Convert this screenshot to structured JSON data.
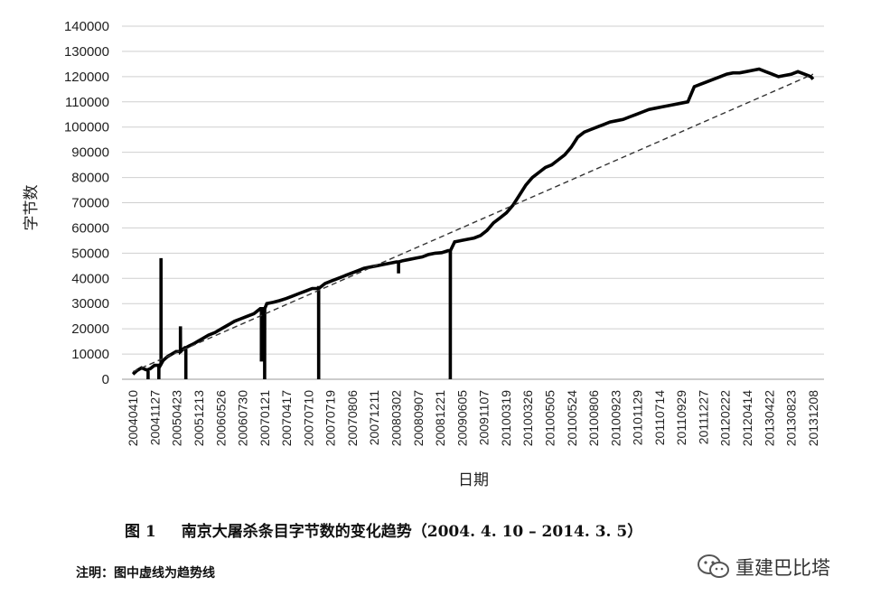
{
  "chart_data": {
    "type": "line",
    "xlabel": "日期",
    "ylabel": "字节数",
    "ylim": [
      0,
      140000
    ],
    "yticks": [
      0,
      10000,
      20000,
      30000,
      40000,
      50000,
      60000,
      70000,
      80000,
      90000,
      100000,
      110000,
      120000,
      130000,
      140000
    ],
    "xtick_labels": [
      "20040410",
      "20041127",
      "20050423",
      "20051213",
      "20060526",
      "20060730",
      "20070121",
      "20070417",
      "20070710",
      "20070719",
      "20070806",
      "20071211",
      "20080302",
      "20080907",
      "20081221",
      "20090605",
      "20091107",
      "20100319",
      "20100326",
      "20100505",
      "20100524",
      "20100806",
      "20100923",
      "20101129",
      "20110714",
      "20110929",
      "20111227",
      "20120222",
      "20120414",
      "20130422",
      "20130823",
      "20131208"
    ],
    "grid": true,
    "series": [
      {
        "style": "solid",
        "x": [
          0.0,
          0.2,
          0.4,
          0.6,
          0.8,
          1.0,
          1.2,
          1.3,
          1.4,
          1.6,
          1.8,
          2.0,
          2.2,
          2.4,
          2.6,
          2.8,
          3.0,
          3.2,
          3.5,
          3.8,
          4.1,
          4.4,
          4.7,
          5.0,
          5.3,
          5.6,
          5.9,
          6.2,
          6.5,
          6.8,
          7.1,
          7.4,
          7.7,
          8.0,
          8.3,
          8.6,
          8.9,
          9.2,
          9.5,
          9.8,
          10.1,
          10.4,
          10.7,
          11.0,
          11.3,
          11.6,
          11.9,
          12.2,
          12.5,
          12.8,
          13.1,
          13.4,
          13.7,
          14.0,
          14.3,
          14.6,
          14.9,
          15.2,
          15.5,
          15.8,
          16.1,
          16.4,
          16.7,
          17.0,
          17.3,
          17.6,
          17.9,
          18.2,
          18.5,
          18.8,
          19.1,
          19.4,
          19.7,
          20.0,
          20.3,
          20.6,
          20.9,
          21.2,
          21.5,
          21.8,
          22.1,
          22.4,
          22.7,
          23.0,
          23.3,
          23.6,
          23.9,
          24.2,
          24.5,
          24.8,
          25.1,
          25.4,
          25.7,
          26.0,
          26.3,
          26.6,
          26.9,
          27.2,
          27.5,
          27.8,
          28.1,
          28.4,
          28.7,
          29.0,
          29.3,
          29.6,
          29.9,
          30.2,
          30.5,
          30.8,
          31.1,
          31.4,
          31.5
        ],
        "y": [
          2000,
          3500,
          4500,
          3800,
          4200,
          5500,
          6000,
          48000,
          7500,
          9000,
          10000,
          11000,
          11800,
          12500,
          13200,
          14000,
          15000,
          16000,
          17500,
          18500,
          20000,
          21500,
          23000,
          24000,
          25000,
          26000,
          28000,
          30000,
          30500,
          31200,
          32000,
          33000,
          34000,
          35000,
          36000,
          37000,
          38000,
          39000,
          40000,
          41000,
          42000,
          43000,
          44000,
          44500,
          45000,
          45500,
          46000,
          46500,
          47000,
          47500,
          48000,
          48500,
          49500,
          50000,
          50200,
          51000,
          54500,
          55000,
          55500,
          56000,
          57000,
          59000,
          62000,
          64000,
          66000,
          69000,
          73000,
          77000,
          80000,
          82000,
          84000,
          85000,
          87000,
          89000,
          92000,
          96000,
          98000,
          99000,
          100000,
          101000,
          102000,
          102500,
          103000,
          104000,
          105000,
          106000,
          107000,
          107500,
          108000,
          108500,
          109000,
          109500,
          110000,
          116000,
          117000,
          118000,
          119000,
          120000,
          121000,
          121500,
          121500,
          122000,
          122500,
          123000,
          122000,
          121000,
          120000,
          120500,
          121000,
          122000,
          121000,
          120000,
          119000
        ],
        "spikes": [
          {
            "x": 0.7,
            "y": 0
          },
          {
            "x": 1.3,
            "y": 48000
          },
          {
            "x": 1.2,
            "y": 0
          },
          {
            "x": 2.2,
            "y": 21000
          },
          {
            "x": 2.45,
            "y": 0
          },
          {
            "x": 5.95,
            "y": 7000
          },
          {
            "x": 6.1,
            "y": 0
          },
          {
            "x": 8.6,
            "y": 0
          },
          {
            "x": 12.3,
            "y": 42000
          },
          {
            "x": 14.7,
            "y": 0
          }
        ]
      },
      {
        "style": "dashed",
        "x": [
          0.0,
          31.5
        ],
        "y": [
          3000,
          121000
        ]
      }
    ]
  },
  "caption": {
    "label": "图 1",
    "title": "南京大屠杀条目字节数的变化趋势（2004. 4. 10 – 2014. 3. 5）"
  },
  "note": "注明：图中虚线为趋势线",
  "watermark": "重建巴比塔"
}
